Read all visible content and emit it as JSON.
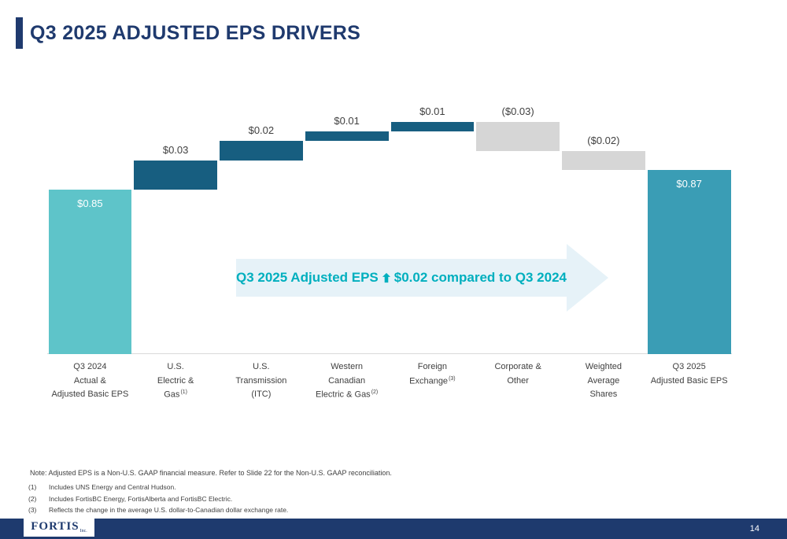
{
  "slide": {
    "title": "Q3 2025 ADJUSTED EPS DRIVERS",
    "page_number": "14",
    "logo_text": "FORTIS",
    "logo_suffix": "Inc."
  },
  "annotation": {
    "prefix": "Q3 2025 Adjusted EPS",
    "suffix": "$0.02 compared to Q3 2024",
    "arrow_color": "#00AFBE",
    "background_arrow_color": "#E6F2F8"
  },
  "notes": {
    "main": "Note: Adjusted EPS is a Non-U.S. GAAP financial measure. Refer to Slide 22 for the Non-U.S. GAAP reconciliation.",
    "footnotes": [
      {
        "num": "(1)",
        "text": "Includes UNS Energy and Central Hudson."
      },
      {
        "num": "(2)",
        "text": "Includes FortisBC Energy, FortisAlberta and FortisBC Electric."
      },
      {
        "num": "(3)",
        "text": "Reflects the change in the average U.S. dollar-to-Canadian dollar exchange rate."
      }
    ]
  },
  "chart_data": {
    "type": "bar",
    "subtype": "waterfall",
    "title": "Q3 2025 ADJUSTED EPS DRIVERS",
    "xlabel": "",
    "ylabel": "",
    "y_axis_visible": false,
    "grid": false,
    "axis": {
      "min": 0.68,
      "max": 0.94
    },
    "bars": [
      {
        "label_lines": [
          "Q3 2024",
          "Actual &",
          "Adjusted Basic EPS"
        ],
        "value": 0.85,
        "display": "$0.85",
        "kind": "total",
        "color_key": "total_start"
      },
      {
        "label_lines": [
          "U.S.",
          "Electric &",
          "Gas"
        ],
        "sup": "(1)",
        "value": 0.03,
        "display": "$0.03",
        "kind": "delta"
      },
      {
        "label_lines": [
          "U.S.",
          "Transmission",
          "(ITC)"
        ],
        "value": 0.02,
        "display": "$0.02",
        "kind": "delta"
      },
      {
        "label_lines": [
          "Western",
          "Canadian",
          "Electric & Gas"
        ],
        "sup": "(2)",
        "value": 0.01,
        "display": "$0.01",
        "kind": "delta"
      },
      {
        "label_lines": [
          "Foreign",
          "Exchange"
        ],
        "sup": "(3)",
        "value": 0.01,
        "display": "$0.01",
        "kind": "delta"
      },
      {
        "label_lines": [
          "Corporate &",
          "Other"
        ],
        "value": -0.03,
        "display": "($0.03)",
        "kind": "delta"
      },
      {
        "label_lines": [
          "Weighted",
          "Average",
          "Shares"
        ],
        "value": -0.02,
        "display": "($0.02)",
        "kind": "delta"
      },
      {
        "label_lines": [
          "Q3 2025",
          "Adjusted Basic EPS"
        ],
        "value": 0.87,
        "display": "$0.87",
        "kind": "total",
        "color_key": "total_end"
      }
    ],
    "colors": {
      "total_start": "#5EC4C9",
      "positive": "#175E80",
      "negative": "#D6D6D6",
      "total_end": "#3A9DB5"
    }
  }
}
